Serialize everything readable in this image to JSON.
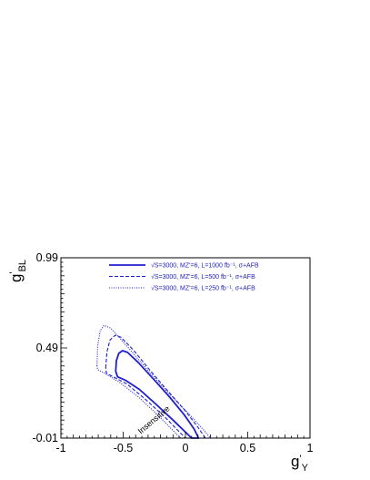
{
  "chart_data": {
    "type": "line",
    "xlabel": {
      "main": "g",
      "prime": "'",
      "sub": "Y"
    },
    "ylabel": {
      "main": "g",
      "prime": "'",
      "sub": "BL"
    },
    "xlim": [
      -1,
      1
    ],
    "ylim": [
      -0.01,
      0.99
    ],
    "x_ticks": [
      {
        "value": -1,
        "label": "-1"
      },
      {
        "value": -0.5,
        "label": "-0.5"
      },
      {
        "value": 0,
        "label": "0"
      },
      {
        "value": 0.5,
        "label": "0.5"
      },
      {
        "value": 1,
        "label": "1"
      }
    ],
    "y_ticks": [
      {
        "value": -0.01,
        "label": "-0.01"
      },
      {
        "value": 0.49,
        "label": "0.49"
      },
      {
        "value": 0.99,
        "label": "0.99"
      }
    ],
    "grid": false,
    "legend_position": "top-center",
    "series_color": "#1f1fd0",
    "series": [
      {
        "name": "√S=3000, MZ'=6, L=1000 fb⁻¹, σ+AFB",
        "style": "solid",
        "points": [
          [
            -0.56,
            0.36
          ],
          [
            -0.555,
            0.42
          ],
          [
            -0.535,
            0.46
          ],
          [
            -0.505,
            0.475
          ],
          [
            -0.465,
            0.465
          ],
          [
            -0.38,
            0.41
          ],
          [
            -0.26,
            0.32
          ],
          [
            -0.13,
            0.22
          ],
          [
            -0.01,
            0.12
          ],
          [
            0.07,
            0.04
          ],
          [
            0.105,
            -0.01
          ],
          [
            0.05,
            -0.01
          ],
          [
            -0.1,
            0.09
          ],
          [
            -0.24,
            0.18
          ],
          [
            -0.37,
            0.26
          ],
          [
            -0.48,
            0.31
          ],
          [
            -0.545,
            0.33
          ],
          [
            -0.56,
            0.36
          ]
        ]
      },
      {
        "name": "√S=3000, MZ'=6, L=500 fb⁻¹, σ+AFB",
        "style": "dashed",
        "points": [
          [
            -0.64,
            0.38
          ],
          [
            -0.63,
            0.47
          ],
          [
            -0.605,
            0.535
          ],
          [
            -0.565,
            0.56
          ],
          [
            -0.52,
            0.55
          ],
          [
            -0.42,
            0.48
          ],
          [
            -0.29,
            0.37
          ],
          [
            -0.14,
            0.25
          ],
          [
            0,
            0.14
          ],
          [
            0.1,
            0.05
          ],
          [
            0.16,
            -0.01
          ],
          [
            0.0,
            -0.01
          ],
          [
            -0.17,
            0.11
          ],
          [
            -0.33,
            0.21
          ],
          [
            -0.47,
            0.29
          ],
          [
            -0.58,
            0.33
          ],
          [
            -0.635,
            0.35
          ],
          [
            -0.64,
            0.38
          ]
        ]
      },
      {
        "name": "√S=3000, MZ'=6, L=250 fb⁻¹, σ+AFB",
        "style": "dotted",
        "points": [
          [
            -0.71,
            0.39
          ],
          [
            -0.705,
            0.5
          ],
          [
            -0.685,
            0.585
          ],
          [
            -0.655,
            0.615
          ],
          [
            -0.6,
            0.6
          ],
          [
            -0.47,
            0.5
          ],
          [
            -0.32,
            0.38
          ],
          [
            -0.15,
            0.25
          ],
          [
            0.02,
            0.13
          ],
          [
            0.14,
            0.04
          ],
          [
            0.2,
            -0.01
          ],
          [
            -0.04,
            -0.01
          ],
          [
            -0.21,
            0.11
          ],
          [
            -0.38,
            0.22
          ],
          [
            -0.53,
            0.3
          ],
          [
            -0.65,
            0.35
          ],
          [
            -0.705,
            0.37
          ],
          [
            -0.71,
            0.39
          ]
        ]
      }
    ],
    "annotations": [
      {
        "text": "Insensitive",
        "x": -0.24,
        "y": 0.08,
        "rotate": -40
      }
    ]
  }
}
